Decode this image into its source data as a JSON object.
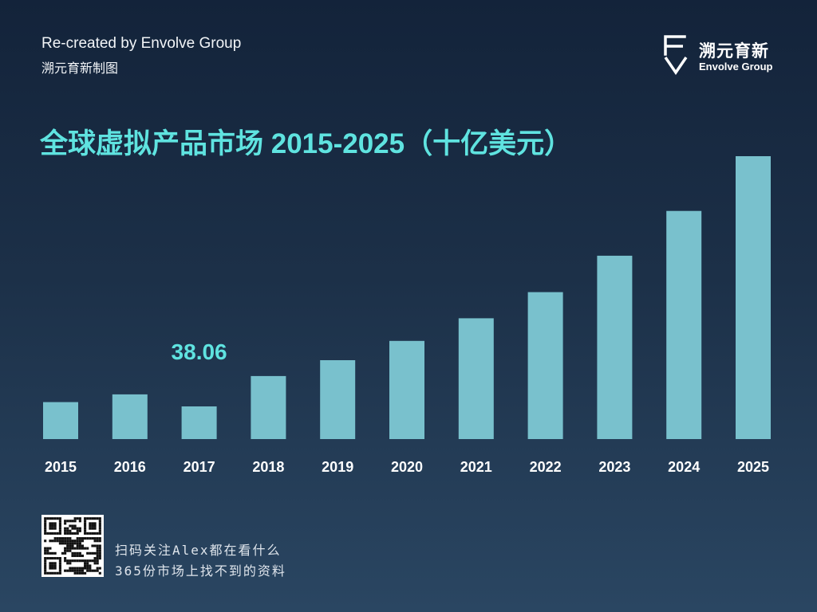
{
  "header": {
    "credit_en": "Re-created by Envolve Group",
    "credit_cn": "溯元育新制图"
  },
  "logo": {
    "name_cn": "溯元育新",
    "name_en": "Envolve Group",
    "icon": "ev-logo-icon"
  },
  "footer": {
    "qr_icon": "qr-code-icon",
    "line1": "扫码关注Alex都在看什么",
    "line2": "365份市场上找不到的资料"
  },
  "colors": {
    "background_top": "#13233a",
    "background_bottom": "#2a4662",
    "title": "#5fe3e0",
    "bar": "#79c1cd",
    "annotation": "#5fe3e0",
    "tick_label": "#ffffff"
  },
  "chart_data": {
    "type": "bar",
    "title": "全球虚拟产品市场 2015-2025（十亿美元）",
    "xlabel": "",
    "ylabel": "",
    "categories": [
      "2015",
      "2016",
      "2017",
      "2018",
      "2019",
      "2020",
      "2021",
      "2022",
      "2023",
      "2024",
      "2025"
    ],
    "values": [
      43.1,
      52.1,
      38.06,
      73.5,
      92.0,
      114.5,
      140.8,
      171.3,
      213.8,
      266.0,
      329.8
    ],
    "annotations": [
      {
        "category": "2017",
        "label": "38.06"
      }
    ],
    "ylim": [
      0,
      345
    ],
    "grid": false,
    "legend": "none"
  }
}
